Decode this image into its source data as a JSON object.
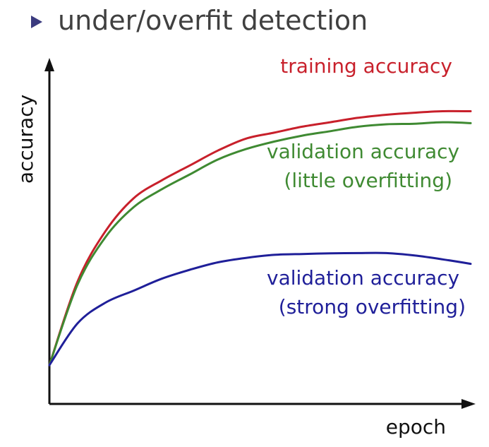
{
  "heading": {
    "text": "under/overfit detection"
  },
  "colors": {
    "training": "#c8202b",
    "validation_little": "#3f8a32",
    "validation_strong": "#1f1f99",
    "bullet": "#3b3b7f",
    "axis": "#111111"
  },
  "chart_data": {
    "type": "line",
    "xlabel": "epoch",
    "ylabel": "accuracy",
    "grid": false,
    "x": [
      0,
      2,
      4,
      6,
      8,
      10,
      12,
      14,
      16,
      18,
      20,
      22,
      24,
      26,
      28,
      30
    ],
    "series": [
      {
        "name": "training accuracy",
        "color": "#c8202b",
        "values": [
          0.0,
          0.28,
          0.45,
          0.56,
          0.62,
          0.67,
          0.72,
          0.76,
          0.78,
          0.8,
          0.815,
          0.83,
          0.84,
          0.847,
          0.852,
          0.852
        ]
      },
      {
        "name": "validation accuracy (little overfitting)",
        "color": "#3f8a32",
        "values": [
          0.0,
          0.27,
          0.43,
          0.53,
          0.59,
          0.64,
          0.69,
          0.725,
          0.75,
          0.77,
          0.785,
          0.8,
          0.808,
          0.81,
          0.815,
          0.812
        ]
      },
      {
        "name": "validation accuracy (strong overfitting)",
        "color": "#1f1f99",
        "values": [
          0.0,
          0.14,
          0.21,
          0.25,
          0.29,
          0.32,
          0.345,
          0.36,
          0.37,
          0.373,
          0.375,
          0.376,
          0.376,
          0.368,
          0.355,
          0.34
        ]
      }
    ],
    "annotations": [
      {
        "series": 0,
        "lines": [
          "training accuracy"
        ]
      },
      {
        "series": 1,
        "lines": [
          "validation accuracy",
          "(little overfitting)"
        ]
      },
      {
        "series": 2,
        "lines": [
          "validation accuracy",
          "(strong overfitting)"
        ]
      }
    ],
    "xlim": [
      0,
      30
    ],
    "ylim": [
      -0.13,
      1.0
    ]
  }
}
